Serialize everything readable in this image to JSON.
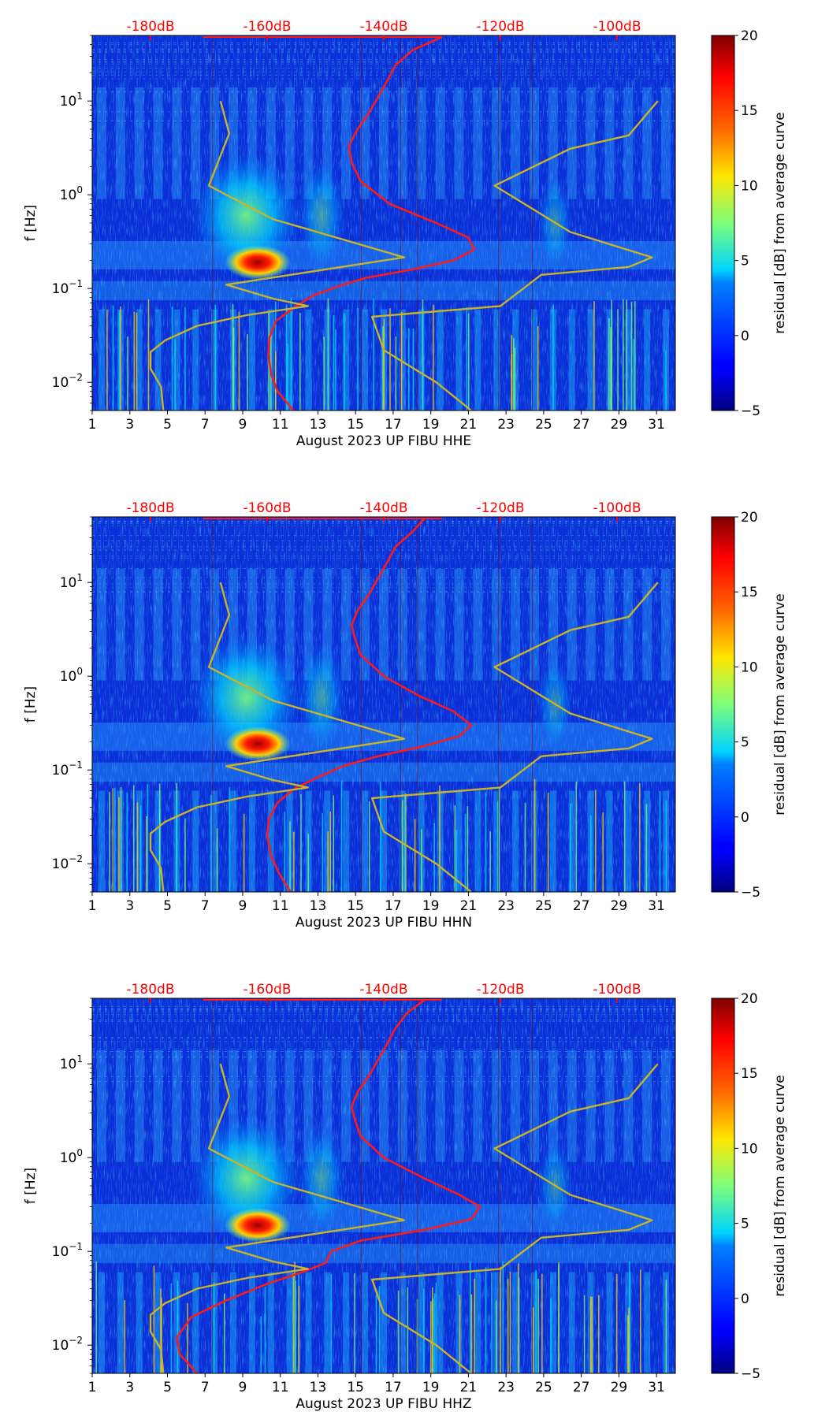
{
  "chart_data": [
    {
      "type": "heatmap",
      "component": "HHE",
      "xlabel": "August 2023 UP FIBU  HHE",
      "ylabel": "f [Hz]",
      "x_ticks": [
        "1",
        "3",
        "5",
        "7",
        "9",
        "11",
        "13",
        "15",
        "17",
        "19",
        "21",
        "23",
        "25",
        "27",
        "29",
        "31"
      ],
      "xlim": [
        1,
        32
      ],
      "y_ticks": [
        "10^-2",
        "10^-1",
        "10^0",
        "10^1"
      ],
      "ylim": [
        0.005,
        50
      ],
      "top_axis_ticks": [
        "-180dB",
        "-160dB",
        "-140dB",
        "-120dB",
        "-100dB"
      ],
      "top_axis_range_dB": [
        -190,
        -90
      ],
      "colorbar": {
        "label": "residual [dB] from average curve",
        "ticks": [
          "20",
          "15",
          "10",
          "5",
          "0",
          "−5"
        ],
        "range": [
          -5,
          20
        ],
        "colormap": "jet"
      },
      "series": [
        {
          "name": "average PSD (dB, top axis)",
          "color": "#ff1a1a",
          "points": [
            [
              -155.5,
              0.005
            ],
            [
              -158.2,
              0.008
            ],
            [
              -159.3,
              0.012
            ],
            [
              -159.8,
              0.02
            ],
            [
              -159.6,
              0.03
            ],
            [
              -158.5,
              0.045
            ],
            [
              -155,
              0.065
            ],
            [
              -152,
              0.085
            ],
            [
              -147,
              0.11
            ],
            [
              -143,
              0.13
            ],
            [
              -135,
              0.16
            ],
            [
              -128,
              0.2
            ],
            [
              -124.5,
              0.26
            ],
            [
              -125.5,
              0.35
            ],
            [
              -131,
              0.5
            ],
            [
              -139,
              0.8
            ],
            [
              -144,
              1.4
            ],
            [
              -145.5,
              2.2
            ],
            [
              -146,
              3.3
            ],
            [
              -144.5,
              5
            ],
            [
              -142.5,
              7.5
            ],
            [
              -141,
              11
            ],
            [
              -139.5,
              16
            ],
            [
              -138,
              24
            ],
            [
              -135,
              35
            ],
            [
              -130,
              48
            ]
          ]
        },
        {
          "name": "NLNM (dB, top axis)",
          "color": "#c8b42a",
          "points": [
            [
              -177.8,
              0.005
            ],
            [
              -178.2,
              0.009
            ],
            [
              -180,
              0.014
            ],
            [
              -180,
              0.021
            ],
            [
              -177.5,
              0.028
            ],
            [
              -172,
              0.04
            ],
            [
              -163.5,
              0.052
            ],
            [
              -153,
              0.065
            ],
            [
              -159,
              0.078
            ],
            [
              -167,
              0.11
            ],
            [
              -136.5,
              0.215
            ],
            [
              -159,
              0.55
            ],
            [
              -170,
              1.25
            ],
            [
              -166.5,
              4.5
            ],
            [
              -168,
              10
            ]
          ]
        },
        {
          "name": "NHNM (dB, top axis)",
          "color": "#c8b42a",
          "points": [
            [
              -125,
              0.005
            ],
            [
              -131,
              0.01
            ],
            [
              -140,
              0.022
            ],
            [
              -142,
              0.05
            ],
            [
              -120,
              0.065
            ],
            [
              -113,
              0.14
            ],
            [
              -98,
              0.17
            ],
            [
              -94,
              0.215
            ],
            [
              -108,
              0.4
            ],
            [
              -121,
              1.25
            ],
            [
              -108,
              3.1
            ],
            [
              -98,
              4.3
            ],
            [
              -93,
              10
            ]
          ]
        }
      ]
    },
    {
      "type": "heatmap",
      "component": "HHN",
      "xlabel": "August 2023 UP FIBU  HHN",
      "ylabel": "f [Hz]",
      "x_ticks": [
        "1",
        "3",
        "5",
        "7",
        "9",
        "11",
        "13",
        "15",
        "17",
        "19",
        "21",
        "23",
        "25",
        "27",
        "29",
        "31"
      ],
      "xlim": [
        1,
        32
      ],
      "y_ticks": [
        "10^-2",
        "10^-1",
        "10^0",
        "10^1"
      ],
      "ylim": [
        0.005,
        50
      ],
      "top_axis_ticks": [
        "-180dB",
        "-160dB",
        "-140dB",
        "-120dB",
        "-100dB"
      ],
      "top_axis_range_dB": [
        -190,
        -90
      ],
      "colorbar": {
        "label": "residual [dB] from average curve",
        "ticks": [
          "20",
          "15",
          "10",
          "5",
          "0",
          "−5"
        ],
        "range": [
          -5,
          20
        ],
        "colormap": "jet"
      },
      "series": [
        {
          "name": "average PSD (dB, top axis)",
          "color": "#ff1a1a",
          "points": [
            [
              -156,
              0.005
            ],
            [
              -158,
              0.008
            ],
            [
              -159.3,
              0.012
            ],
            [
              -160,
              0.02
            ],
            [
              -159.7,
              0.03
            ],
            [
              -158.2,
              0.045
            ],
            [
              -155,
              0.065
            ],
            [
              -151,
              0.085
            ],
            [
              -147,
              0.11
            ],
            [
              -141,
              0.14
            ],
            [
              -133,
              0.18
            ],
            [
              -127,
              0.23
            ],
            [
              -125,
              0.3
            ],
            [
              -128,
              0.42
            ],
            [
              -134,
              0.62
            ],
            [
              -140,
              1.0
            ],
            [
              -144,
              1.7
            ],
            [
              -145,
              2.6
            ],
            [
              -145.5,
              3.5
            ],
            [
              -144.5,
              5
            ],
            [
              -142.5,
              7.5
            ],
            [
              -141,
              11
            ],
            [
              -139.5,
              16
            ],
            [
              -138,
              24
            ],
            [
              -135,
              35
            ],
            [
              -133,
              48
            ]
          ]
        },
        {
          "name": "NLNM (dB, top axis)",
          "color": "#c8b42a",
          "points": [
            [
              -177.8,
              0.005
            ],
            [
              -178.2,
              0.009
            ],
            [
              -180,
              0.014
            ],
            [
              -180,
              0.021
            ],
            [
              -177.5,
              0.028
            ],
            [
              -172,
              0.04
            ],
            [
              -163.5,
              0.052
            ],
            [
              -153,
              0.065
            ],
            [
              -159,
              0.078
            ],
            [
              -167,
              0.11
            ],
            [
              -136.5,
              0.215
            ],
            [
              -159,
              0.55
            ],
            [
              -170,
              1.25
            ],
            [
              -166.5,
              4.5
            ],
            [
              -168,
              10
            ]
          ]
        },
        {
          "name": "NHNM (dB, top axis)",
          "color": "#c8b42a",
          "points": [
            [
              -125,
              0.005
            ],
            [
              -131,
              0.01
            ],
            [
              -140,
              0.022
            ],
            [
              -142,
              0.05
            ],
            [
              -120,
              0.065
            ],
            [
              -113,
              0.14
            ],
            [
              -98,
              0.17
            ],
            [
              -94,
              0.215
            ],
            [
              -108,
              0.4
            ],
            [
              -121,
              1.25
            ],
            [
              -108,
              3.1
            ],
            [
              -98,
              4.3
            ],
            [
              -93,
              10
            ]
          ]
        }
      ]
    },
    {
      "type": "heatmap",
      "component": "HHZ",
      "xlabel": "August 2023 UP FIBU  HHZ",
      "ylabel": "f [Hz]",
      "x_ticks": [
        "1",
        "3",
        "5",
        "7",
        "9",
        "11",
        "13",
        "15",
        "17",
        "19",
        "21",
        "23",
        "25",
        "27",
        "29",
        "31"
      ],
      "xlim": [
        1,
        32
      ],
      "y_ticks": [
        "10^-2",
        "10^-1",
        "10^0",
        "10^1"
      ],
      "ylim": [
        0.005,
        50
      ],
      "top_axis_ticks": [
        "-180dB",
        "-160dB",
        "-140dB",
        "-120dB",
        "-100dB"
      ],
      "top_axis_range_dB": [
        -190,
        -90
      ],
      "colorbar": {
        "label": "residual [dB] from average curve",
        "ticks": [
          "20",
          "15",
          "10",
          "5",
          "0",
          "−5"
        ],
        "range": [
          -5,
          20
        ],
        "colormap": "jet"
      },
      "series": [
        {
          "name": "average PSD (dB, top axis)",
          "color": "#ff1a1a",
          "points": [
            [
              -172,
              0.005
            ],
            [
              -175,
              0.008
            ],
            [
              -175.5,
              0.012
            ],
            [
              -173,
              0.02
            ],
            [
              -167,
              0.03
            ],
            [
              -160,
              0.045
            ],
            [
              -154,
              0.06
            ],
            [
              -150,
              0.075
            ],
            [
              -149,
              0.1
            ],
            [
              -144,
              0.13
            ],
            [
              -133,
              0.17
            ],
            [
              -125,
              0.22
            ],
            [
              -123.5,
              0.3
            ],
            [
              -127,
              0.4
            ],
            [
              -133,
              0.6
            ],
            [
              -140,
              1.0
            ],
            [
              -144,
              1.7
            ],
            [
              -145,
              2.6
            ],
            [
              -145.5,
              3.5
            ],
            [
              -144.5,
              5
            ],
            [
              -142.5,
              7.5
            ],
            [
              -141,
              11
            ],
            [
              -139.5,
              16
            ],
            [
              -138,
              24
            ],
            [
              -136,
              35
            ],
            [
              -133,
              48
            ]
          ]
        },
        {
          "name": "NLNM (dB, top axis)",
          "color": "#c8b42a",
          "points": [
            [
              -177.8,
              0.005
            ],
            [
              -178.2,
              0.009
            ],
            [
              -180,
              0.014
            ],
            [
              -180,
              0.021
            ],
            [
              -177.5,
              0.028
            ],
            [
              -172,
              0.04
            ],
            [
              -163.5,
              0.052
            ],
            [
              -153,
              0.065
            ],
            [
              -159,
              0.078
            ],
            [
              -167,
              0.11
            ],
            [
              -136.5,
              0.215
            ],
            [
              -159,
              0.55
            ],
            [
              -170,
              1.25
            ],
            [
              -166.5,
              4.5
            ],
            [
              -168,
              10
            ]
          ]
        },
        {
          "name": "NHNM (dB, top axis)",
          "color": "#c8b42a",
          "points": [
            [
              -125,
              0.005
            ],
            [
              -131,
              0.01
            ],
            [
              -140,
              0.022
            ],
            [
              -142,
              0.05
            ],
            [
              -120,
              0.065
            ],
            [
              -113,
              0.14
            ],
            [
              -98,
              0.17
            ],
            [
              -94,
              0.215
            ],
            [
              -108,
              0.4
            ],
            [
              -121,
              1.25
            ],
            [
              -108,
              3.1
            ],
            [
              -98,
              4.3
            ],
            [
              -93,
              10
            ]
          ]
        }
      ]
    }
  ],
  "colors": {
    "top_axis_label": "#ff0000",
    "background": "#ffffff",
    "axis": "#000000"
  }
}
